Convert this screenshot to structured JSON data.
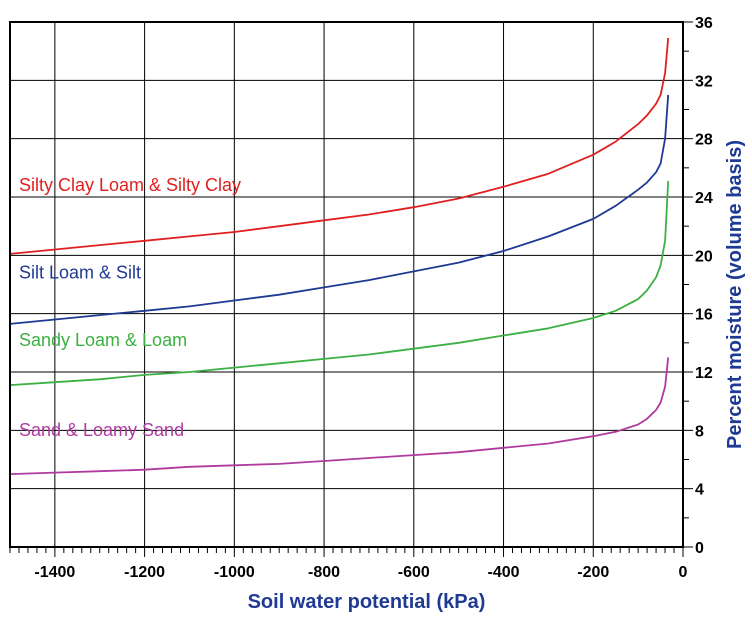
{
  "chart_data": {
    "type": "line",
    "title": "",
    "xlabel": "Soil water potential (kPa)",
    "ylabel": "Percent moisture (volume basis)",
    "xlim": [
      -1500,
      0
    ],
    "ylim": [
      0,
      36
    ],
    "x_ticks": [
      -1400,
      -1200,
      -1000,
      -800,
      -600,
      -400,
      -200,
      0
    ],
    "y_ticks": [
      0,
      4,
      8,
      12,
      16,
      20,
      24,
      28,
      32,
      36
    ],
    "grid": true,
    "y_axis_side": "right",
    "legend": "inline labels",
    "x": [
      -1500,
      -1400,
      -1300,
      -1200,
      -1100,
      -1000,
      -900,
      -800,
      -700,
      -600,
      -500,
      -400,
      -300,
      -200,
      -150,
      -100,
      -80,
      -60,
      -50,
      -40,
      -33
    ],
    "series": [
      {
        "name": "Silty Clay Loam & Silty Clay",
        "color": "#e02020",
        "label_pos": [
          -1480,
          24.4
        ],
        "values": [
          20.1,
          20.4,
          20.7,
          21.0,
          21.3,
          21.6,
          22.0,
          22.4,
          22.8,
          23.3,
          23.9,
          24.7,
          25.6,
          26.9,
          27.8,
          29.0,
          29.6,
          30.4,
          31.0,
          32.5,
          34.9
        ]
      },
      {
        "name": "Silt Loam & Silt",
        "color": "#1f3a93",
        "label_pos": [
          -1480,
          18.4
        ],
        "values": [
          15.3,
          15.6,
          15.9,
          16.2,
          16.5,
          16.9,
          17.3,
          17.8,
          18.3,
          18.9,
          19.5,
          20.3,
          21.3,
          22.5,
          23.4,
          24.5,
          25.0,
          25.7,
          26.3,
          28.0,
          31.0
        ]
      },
      {
        "name": "Sandy Loam & Loam",
        "color": "#3cb043",
        "label_pos": [
          -1480,
          13.8
        ],
        "values": [
          11.1,
          11.3,
          11.5,
          11.8,
          12.0,
          12.3,
          12.6,
          12.9,
          13.2,
          13.6,
          14.0,
          14.5,
          15.0,
          15.7,
          16.2,
          17.0,
          17.6,
          18.5,
          19.3,
          21.0,
          25.1
        ]
      },
      {
        "name": "Sand & Loamy Sand",
        "color": "#b03a9e",
        "label_pos": [
          -1480,
          7.6
        ],
        "values": [
          5.0,
          5.1,
          5.2,
          5.3,
          5.5,
          5.6,
          5.7,
          5.9,
          6.1,
          6.3,
          6.5,
          6.8,
          7.1,
          7.6,
          7.9,
          8.4,
          8.8,
          9.4,
          9.9,
          11.0,
          13.0
        ]
      }
    ]
  }
}
